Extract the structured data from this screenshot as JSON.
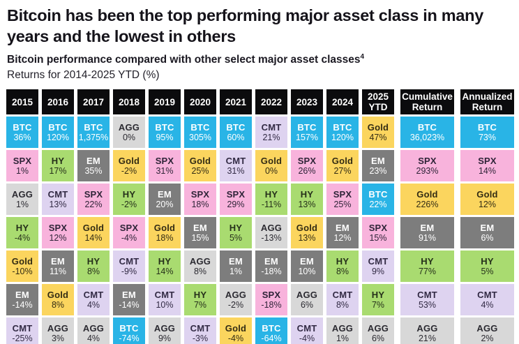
{
  "chart_data": {
    "type": "table",
    "title": "Bitcoin has been the top performing major asset class in many years and the lowest in others",
    "subtitle": "Bitcoin performance compared with other select major asset classes",
    "subtitle_footnote": "4",
    "caption": "Returns for 2014-2025 YTD (%)",
    "assets": {
      "BTC": {
        "color": "#29b4e6",
        "text_color": "#ffffff"
      },
      "SPX": {
        "color": "#f8b3dc",
        "text_color": "#2f2438"
      },
      "AGG": {
        "color": "#d8d8d8",
        "text_color": "#2b2a31"
      },
      "HY": {
        "color": "#a9db70",
        "text_color": "#25301a"
      },
      "Gold": {
        "color": "#fbd55e",
        "text_color": "#332c14"
      },
      "EM": {
        "color": "#7d7d7d",
        "text_color": "#ffffff"
      },
      "CMT": {
        "color": "#ded3f0",
        "text_color": "#322a44"
      }
    },
    "header_bg": "#0b0b0d",
    "columns": [
      {
        "header": "2015",
        "summary": false,
        "cells": [
          {
            "asset": "BTC",
            "value": "36%"
          },
          {
            "asset": "SPX",
            "value": "1%"
          },
          {
            "asset": "AGG",
            "value": "1%"
          },
          {
            "asset": "HY",
            "value": "-4%"
          },
          {
            "asset": "Gold",
            "value": "-10%"
          },
          {
            "asset": "EM",
            "value": "-14%"
          },
          {
            "asset": "CMT",
            "value": "-25%"
          }
        ]
      },
      {
        "header": "2016",
        "summary": false,
        "cells": [
          {
            "asset": "BTC",
            "value": "120%"
          },
          {
            "asset": "HY",
            "value": "17%"
          },
          {
            "asset": "CMT",
            "value": "13%"
          },
          {
            "asset": "SPX",
            "value": "12%"
          },
          {
            "asset": "EM",
            "value": "11%"
          },
          {
            "asset": "Gold",
            "value": "8%"
          },
          {
            "asset": "AGG",
            "value": "3%"
          }
        ]
      },
      {
        "header": "2017",
        "summary": false,
        "cells": [
          {
            "asset": "BTC",
            "value": "1,375%"
          },
          {
            "asset": "EM",
            "value": "35%"
          },
          {
            "asset": "SPX",
            "value": "22%"
          },
          {
            "asset": "Gold",
            "value": "14%"
          },
          {
            "asset": "HY",
            "value": "8%"
          },
          {
            "asset": "CMT",
            "value": "4%"
          },
          {
            "asset": "AGG",
            "value": "4%"
          }
        ]
      },
      {
        "header": "2018",
        "summary": false,
        "cells": [
          {
            "asset": "AGG",
            "value": "0%"
          },
          {
            "asset": "Gold",
            "value": "-2%"
          },
          {
            "asset": "HY",
            "value": "-2%"
          },
          {
            "asset": "SPX",
            "value": "-4%"
          },
          {
            "asset": "CMT",
            "value": "-9%"
          },
          {
            "asset": "EM",
            "value": "-14%"
          },
          {
            "asset": "BTC",
            "value": "-74%"
          }
        ]
      },
      {
        "header": "2019",
        "summary": false,
        "cells": [
          {
            "asset": "BTC",
            "value": "95%"
          },
          {
            "asset": "SPX",
            "value": "31%"
          },
          {
            "asset": "EM",
            "value": "20%"
          },
          {
            "asset": "Gold",
            "value": "18%"
          },
          {
            "asset": "HY",
            "value": "14%"
          },
          {
            "asset": "CMT",
            "value": "10%"
          },
          {
            "asset": "AGG",
            "value": "9%"
          }
        ]
      },
      {
        "header": "2020",
        "summary": false,
        "cells": [
          {
            "asset": "BTC",
            "value": "305%"
          },
          {
            "asset": "Gold",
            "value": "25%"
          },
          {
            "asset": "SPX",
            "value": "18%"
          },
          {
            "asset": "EM",
            "value": "15%"
          },
          {
            "asset": "AGG",
            "value": "8%"
          },
          {
            "asset": "HY",
            "value": "7%"
          },
          {
            "asset": "CMT",
            "value": "-3%"
          }
        ]
      },
      {
        "header": "2021",
        "summary": false,
        "cells": [
          {
            "asset": "BTC",
            "value": "60%"
          },
          {
            "asset": "CMT",
            "value": "31%"
          },
          {
            "asset": "SPX",
            "value": "29%"
          },
          {
            "asset": "HY",
            "value": "5%"
          },
          {
            "asset": "EM",
            "value": "1%"
          },
          {
            "asset": "AGG",
            "value": "-2%"
          },
          {
            "asset": "Gold",
            "value": "-4%"
          }
        ]
      },
      {
        "header": "2022",
        "summary": false,
        "cells": [
          {
            "asset": "CMT",
            "value": "21%"
          },
          {
            "asset": "Gold",
            "value": "0%"
          },
          {
            "asset": "HY",
            "value": "-11%"
          },
          {
            "asset": "AGG",
            "value": "-13%"
          },
          {
            "asset": "EM",
            "value": "-18%"
          },
          {
            "asset": "SPX",
            "value": "-18%"
          },
          {
            "asset": "BTC",
            "value": "-64%"
          }
        ]
      },
      {
        "header": "2023",
        "summary": false,
        "cells": [
          {
            "asset": "BTC",
            "value": "157%"
          },
          {
            "asset": "SPX",
            "value": "26%"
          },
          {
            "asset": "HY",
            "value": "13%"
          },
          {
            "asset": "Gold",
            "value": "13%"
          },
          {
            "asset": "EM",
            "value": "10%"
          },
          {
            "asset": "AGG",
            "value": "6%"
          },
          {
            "asset": "CMT",
            "value": "-4%"
          }
        ]
      },
      {
        "header": "2024",
        "summary": false,
        "cells": [
          {
            "asset": "BTC",
            "value": "120%"
          },
          {
            "asset": "Gold",
            "value": "27%"
          },
          {
            "asset": "SPX",
            "value": "25%"
          },
          {
            "asset": "EM",
            "value": "12%"
          },
          {
            "asset": "HY",
            "value": "8%"
          },
          {
            "asset": "CMT",
            "value": "8%"
          },
          {
            "asset": "AGG",
            "value": "1%"
          }
        ]
      },
      {
        "header": "2025 YTD",
        "summary": false,
        "cells": [
          {
            "asset": "Gold",
            "value": "47%"
          },
          {
            "asset": "EM",
            "value": "23%"
          },
          {
            "asset": "BTC",
            "value": "22%"
          },
          {
            "asset": "SPX",
            "value": "15%"
          },
          {
            "asset": "CMT",
            "value": "9%"
          },
          {
            "asset": "HY",
            "value": "7%"
          },
          {
            "asset": "AGG",
            "value": "6%"
          }
        ]
      },
      {
        "header": "Cumulative Return",
        "summary": true,
        "cells": [
          {
            "asset": "BTC",
            "value": "36,023%"
          },
          {
            "asset": "SPX",
            "value": "293%"
          },
          {
            "asset": "Gold",
            "value": "226%"
          },
          {
            "asset": "EM",
            "value": "91%"
          },
          {
            "asset": "HY",
            "value": "77%"
          },
          {
            "asset": "CMT",
            "value": "53%"
          },
          {
            "asset": "AGG",
            "value": "21%"
          }
        ]
      },
      {
        "header": "Annualized Return",
        "summary": true,
        "cells": [
          {
            "asset": "BTC",
            "value": "73%"
          },
          {
            "asset": "SPX",
            "value": "14%"
          },
          {
            "asset": "Gold",
            "value": "12%"
          },
          {
            "asset": "EM",
            "value": "6%"
          },
          {
            "asset": "HY",
            "value": "5%"
          },
          {
            "asset": "CMT",
            "value": "4%"
          },
          {
            "asset": "AGG",
            "value": "2%"
          }
        ]
      }
    ]
  }
}
